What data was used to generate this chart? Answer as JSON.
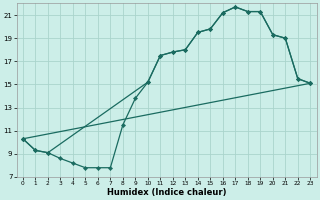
{
  "xlabel": "Humidex (Indice chaleur)",
  "bg_color": "#cceee8",
  "line_color": "#1a6b60",
  "grid_color": "#aad4cc",
  "xlim": [
    -0.5,
    23.5
  ],
  "ylim": [
    7,
    22
  ],
  "yticks": [
    7,
    9,
    11,
    13,
    15,
    17,
    19,
    21
  ],
  "xticks": [
    0,
    1,
    2,
    3,
    4,
    5,
    6,
    7,
    8,
    9,
    10,
    11,
    12,
    13,
    14,
    15,
    16,
    17,
    18,
    19,
    20,
    21,
    22,
    23
  ],
  "curve1_x": [
    0,
    1,
    2,
    10,
    11,
    12,
    13,
    14,
    15,
    16,
    17,
    18,
    19,
    20,
    21,
    22,
    23
  ],
  "curve1_y": [
    10.3,
    9.3,
    9.1,
    15.2,
    17.5,
    17.8,
    18.0,
    19.5,
    19.8,
    21.2,
    21.7,
    21.3,
    21.3,
    19.3,
    19.0,
    15.5,
    15.1
  ],
  "curve2_x": [
    0,
    1,
    2,
    3,
    4,
    5,
    6,
    7,
    8,
    9,
    10,
    11,
    12,
    13,
    14,
    15,
    16,
    17,
    18,
    19,
    20,
    21,
    22,
    23
  ],
  "curve2_y": [
    10.3,
    9.3,
    9.1,
    8.6,
    8.2,
    7.8,
    7.8,
    7.8,
    11.5,
    13.8,
    15.2,
    17.5,
    17.8,
    18.0,
    19.5,
    19.8,
    21.2,
    21.7,
    21.3,
    21.3,
    19.3,
    19.0,
    15.5,
    15.1
  ],
  "curve3_x": [
    0,
    23
  ],
  "curve3_y": [
    10.3,
    15.1
  ]
}
